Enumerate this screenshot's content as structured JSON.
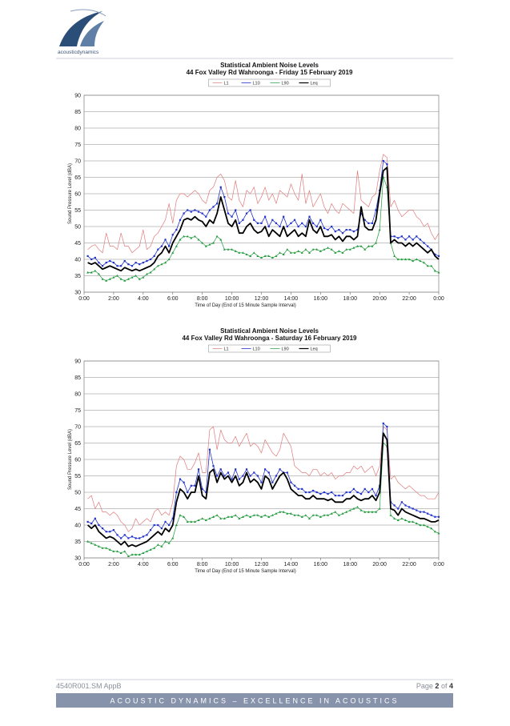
{
  "header": {
    "logo_text": "acousticdynamics"
  },
  "chart_data": [
    {
      "type": "line",
      "title": "Statistical Ambient Noise Levels",
      "subtitle": "44 Fox Valley Rd Wahroonga - Friday 15 February 2019",
      "x_label": "Time of Day (End of 15 Minute Sample Interval)",
      "y_label": "Sound Pressure Level (dBA)",
      "x": [
        0.25,
        0.5,
        0.75,
        1,
        1.25,
        1.5,
        1.75,
        2,
        2.25,
        2.5,
        2.75,
        3,
        3.25,
        3.5,
        3.75,
        4,
        4.25,
        4.5,
        4.75,
        5,
        5.25,
        5.5,
        5.75,
        6,
        6.25,
        6.5,
        6.75,
        7,
        7.25,
        7.5,
        7.75,
        8,
        8.25,
        8.5,
        8.75,
        9,
        9.25,
        9.5,
        9.75,
        10,
        10.25,
        10.5,
        10.75,
        11,
        11.25,
        11.5,
        11.75,
        12,
        12.25,
        12.5,
        12.75,
        13,
        13.25,
        13.5,
        13.75,
        14,
        14.25,
        14.5,
        14.75,
        15,
        15.25,
        15.5,
        15.75,
        16,
        16.25,
        16.5,
        16.75,
        17,
        17.25,
        17.5,
        17.75,
        18,
        18.25,
        18.5,
        18.75,
        19,
        19.25,
        19.5,
        19.75,
        20,
        20.25,
        20.5,
        20.75,
        21,
        21.25,
        21.5,
        21.75,
        22,
        22.25,
        22.5,
        22.75,
        23,
        23.25,
        23.5,
        23.75,
        24
      ],
      "xlim": [
        0,
        24
      ],
      "xticks": [
        {
          "value": 0,
          "label": "0:00"
        },
        {
          "value": 2,
          "label": "2:00"
        },
        {
          "value": 4,
          "label": "4:00"
        },
        {
          "value": 6,
          "label": "6:00"
        },
        {
          "value": 8,
          "label": "8:00"
        },
        {
          "value": 10,
          "label": "10:00"
        },
        {
          "value": 12,
          "label": "12:00"
        },
        {
          "value": 14,
          "label": "14:00"
        },
        {
          "value": 16,
          "label": "16:00"
        },
        {
          "value": 18,
          "label": "18:00"
        },
        {
          "value": 20,
          "label": "20:00"
        },
        {
          "value": 22,
          "label": "22:00"
        },
        {
          "value": 24,
          "label": "0:00"
        }
      ],
      "ylim": [
        30,
        90
      ],
      "yticks": [
        30,
        35,
        40,
        45,
        50,
        55,
        60,
        65,
        70,
        75,
        80,
        85,
        90
      ],
      "grid": true,
      "legend": "top",
      "series": [
        {
          "name": "L1",
          "color": "#e07a7a",
          "line_width": 0.7,
          "values": [
            43,
            44,
            44.5,
            43,
            42,
            48,
            44,
            44,
            43,
            48,
            44,
            44,
            42,
            43,
            44,
            49,
            43,
            44,
            47,
            48,
            50,
            52,
            57,
            51,
            58,
            60,
            60,
            59,
            60,
            61,
            60,
            58,
            57,
            61,
            62,
            65,
            66,
            64,
            59,
            58,
            64,
            58,
            56,
            61,
            60,
            62,
            57,
            59,
            62,
            58,
            60,
            57,
            61,
            60,
            59,
            63,
            60,
            58,
            66,
            57,
            61,
            56,
            58,
            60,
            56,
            54,
            57,
            55,
            54,
            57,
            56,
            55,
            54,
            67,
            58,
            57,
            56,
            59,
            60,
            67,
            72,
            71,
            56,
            58,
            55,
            53,
            54,
            55,
            55,
            53,
            52,
            50,
            51,
            48,
            46,
            48
          ]
        },
        {
          "name": "L10",
          "color": "#2233cc",
          "line_width": 0.8,
          "marker": "square",
          "values": [
            41,
            40,
            40.5,
            39,
            38,
            39,
            39.5,
            39,
            38,
            38,
            39.5,
            38.5,
            38,
            39,
            38.5,
            39,
            39.5,
            40,
            41,
            43,
            44,
            46,
            44,
            47.5,
            49,
            52,
            54,
            55,
            54.5,
            55,
            54.5,
            54,
            53,
            55,
            56,
            57,
            62,
            59,
            54,
            53,
            55,
            51,
            52,
            54,
            55,
            52,
            51,
            51,
            53,
            50,
            52,
            51,
            50,
            53,
            50,
            51,
            52,
            50,
            51,
            50,
            53,
            51,
            50,
            52,
            49.5,
            49,
            50,
            48.5,
            49,
            48,
            49,
            49,
            48.5,
            49,
            54,
            52,
            51,
            51,
            55,
            61,
            70,
            69,
            47,
            47,
            46.5,
            47,
            46,
            47,
            46,
            47,
            46,
            45,
            44,
            43,
            41.5,
            41
          ]
        },
        {
          "name": "L90",
          "color": "#1f9a3a",
          "line_width": 0.7,
          "marker": "triangle",
          "values": [
            36,
            36,
            36.5,
            35.5,
            34,
            33.5,
            34,
            34.5,
            35,
            34,
            33.5,
            34,
            34.5,
            35,
            34,
            34.5,
            35.5,
            36,
            37,
            38,
            38.5,
            39,
            40,
            42,
            44,
            46,
            47,
            47,
            46.5,
            47,
            46,
            45,
            44,
            44.5,
            45,
            47,
            46,
            43,
            43,
            43,
            42.5,
            42,
            42,
            41.5,
            41,
            42,
            41,
            40.5,
            41,
            41,
            40.5,
            41,
            42,
            41.5,
            43,
            42,
            42,
            42.5,
            42,
            43,
            42,
            43,
            43,
            42.5,
            43,
            43.5,
            43,
            42,
            42.5,
            42,
            43,
            43,
            43.5,
            44,
            44,
            43,
            44,
            44,
            45,
            49,
            65,
            62,
            45,
            41,
            40,
            40,
            40,
            40,
            39.5,
            40,
            39.5,
            39,
            38,
            38,
            36.5,
            36
          ]
        },
        {
          "name": "Leq",
          "color": "#000000",
          "line_width": 1.8,
          "values": [
            39,
            38.5,
            39,
            38,
            37,
            37.5,
            38,
            37.5,
            37,
            36.5,
            37.5,
            37,
            36.5,
            37,
            36.5,
            37,
            37.5,
            38,
            39,
            41,
            42,
            44,
            42,
            45,
            47,
            49,
            52,
            52.5,
            52,
            53,
            52,
            51.5,
            50,
            52,
            51,
            54,
            59,
            55,
            51,
            50,
            52,
            48,
            48,
            50,
            51,
            49,
            48,
            48.5,
            50,
            47,
            49,
            48,
            47,
            50,
            47,
            48,
            49,
            47,
            48,
            47,
            52,
            49,
            48,
            50,
            47,
            47,
            47.5,
            46,
            47,
            45.5,
            47,
            47,
            46,
            47,
            56,
            50,
            49,
            49,
            52,
            60,
            67,
            68,
            45,
            46,
            45,
            45,
            44,
            45,
            44,
            45,
            44,
            43,
            42,
            43,
            41,
            40
          ]
        }
      ]
    },
    {
      "type": "line",
      "title": "Statistical Ambient Noise Levels",
      "subtitle": "44 Fox Valley Rd Wahroonga - Saturday 16 February 2019",
      "x_label": "Time of Day (End of 15 Minute Sample Interval)",
      "y_label": "Sound Pressure Level (dBA)",
      "x": [
        0.25,
        0.5,
        0.75,
        1,
        1.25,
        1.5,
        1.75,
        2,
        2.25,
        2.5,
        2.75,
        3,
        3.25,
        3.5,
        3.75,
        4,
        4.25,
        4.5,
        4.75,
        5,
        5.25,
        5.5,
        5.75,
        6,
        6.25,
        6.5,
        6.75,
        7,
        7.25,
        7.5,
        7.75,
        8,
        8.25,
        8.5,
        8.75,
        9,
        9.25,
        9.5,
        9.75,
        10,
        10.25,
        10.5,
        10.75,
        11,
        11.25,
        11.5,
        11.75,
        12,
        12.25,
        12.5,
        12.75,
        13,
        13.25,
        13.5,
        13.75,
        14,
        14.25,
        14.5,
        14.75,
        15,
        15.25,
        15.5,
        15.75,
        16,
        16.25,
        16.5,
        16.75,
        17,
        17.25,
        17.5,
        17.75,
        18,
        18.25,
        18.5,
        18.75,
        19,
        19.25,
        19.5,
        19.75,
        20,
        20.25,
        20.5,
        20.75,
        21,
        21.25,
        21.5,
        21.75,
        22,
        22.25,
        22.5,
        22.75,
        23,
        23.25,
        23.5,
        23.75,
        24
      ],
      "xlim": [
        0,
        24
      ],
      "xticks": [
        {
          "value": 0,
          "label": "0:00"
        },
        {
          "value": 2,
          "label": "2:00"
        },
        {
          "value": 4,
          "label": "4:00"
        },
        {
          "value": 6,
          "label": "6:00"
        },
        {
          "value": 8,
          "label": "8:00"
        },
        {
          "value": 10,
          "label": "10:00"
        },
        {
          "value": 12,
          "label": "12:00"
        },
        {
          "value": 14,
          "label": "14:00"
        },
        {
          "value": 16,
          "label": "16:00"
        },
        {
          "value": 18,
          "label": "18:00"
        },
        {
          "value": 20,
          "label": "20:00"
        },
        {
          "value": 22,
          "label": "22:00"
        },
        {
          "value": 24,
          "label": "0:00"
        }
      ],
      "ylim": [
        30,
        90
      ],
      "yticks": [
        30,
        35,
        40,
        45,
        50,
        55,
        60,
        65,
        70,
        75,
        80,
        85,
        90
      ],
      "grid": true,
      "legend": "top",
      "series": [
        {
          "name": "L1",
          "color": "#e07a7a",
          "line_width": 0.7,
          "values": [
            48,
            49,
            45,
            47,
            44,
            44,
            43,
            44,
            43,
            41,
            40,
            38,
            39,
            42,
            40,
            41,
            42,
            41,
            44,
            45,
            43,
            44,
            43,
            47,
            58,
            61,
            60,
            57,
            57,
            59,
            62,
            56,
            56,
            69,
            70,
            63,
            69,
            66,
            65,
            65,
            67,
            64,
            66,
            68,
            64,
            65,
            64,
            62,
            66,
            64,
            62,
            61,
            63,
            68,
            66,
            64,
            58,
            57,
            56,
            56,
            55,
            57,
            57,
            55,
            56,
            55,
            56,
            54,
            55,
            55,
            56,
            56,
            58,
            57,
            58,
            56,
            57,
            58,
            55,
            58,
            70,
            69,
            54,
            55,
            53,
            52,
            51,
            52,
            51,
            50,
            49,
            49,
            48,
            48,
            48,
            50
          ]
        },
        {
          "name": "L10",
          "color": "#2233cc",
          "line_width": 0.8,
          "marker": "square",
          "values": [
            41,
            40.5,
            42,
            40,
            39,
            38,
            38,
            38.5,
            37,
            36,
            37,
            36,
            36.5,
            36,
            36,
            36.5,
            37,
            38.5,
            40,
            40,
            39,
            41,
            40,
            42,
            50,
            54,
            53,
            50,
            52,
            52,
            57,
            51,
            50,
            63,
            58,
            55,
            57,
            55,
            56,
            54,
            57,
            54,
            55,
            57,
            55,
            56,
            55,
            53,
            57,
            56,
            53,
            55,
            57,
            56,
            56,
            53,
            52,
            51,
            51,
            50,
            50,
            50.5,
            50,
            49.5,
            50,
            49.5,
            50,
            49,
            49,
            49,
            50,
            50,
            51,
            50,
            49.5,
            51,
            50,
            51,
            49,
            52,
            71,
            70,
            47,
            46,
            45,
            47,
            46,
            45.5,
            45,
            44.5,
            44,
            44,
            43.5,
            43,
            42.5,
            42.5
          ]
        },
        {
          "name": "L90",
          "color": "#1f9a3a",
          "line_width": 0.7,
          "marker": "triangle",
          "values": [
            35,
            34.5,
            34,
            33.5,
            33,
            33,
            32.5,
            32,
            32,
            31.5,
            32,
            30.5,
            31,
            31,
            31,
            31.5,
            32,
            32.5,
            33,
            34,
            33.5,
            35,
            34.5,
            36,
            40,
            43,
            42.5,
            41,
            41,
            41,
            41.5,
            42,
            41.5,
            42,
            42.5,
            43,
            42,
            42,
            42.5,
            42.5,
            43,
            42,
            42.5,
            43,
            42.5,
            43,
            43,
            42.5,
            43,
            42.5,
            43,
            43.5,
            44,
            44,
            43.5,
            43.5,
            43,
            43,
            42.5,
            43,
            42,
            43,
            43,
            42.5,
            43,
            43,
            43.5,
            44,
            43,
            43.5,
            44,
            44.5,
            45,
            45.5,
            44.5,
            44,
            44,
            44,
            44,
            45,
            65,
            64,
            43,
            42,
            41.5,
            42,
            41.5,
            41,
            41,
            40.5,
            40,
            40,
            39.5,
            39,
            38,
            37.5
          ]
        },
        {
          "name": "Leq",
          "color": "#000000",
          "line_width": 1.8,
          "values": [
            40,
            39,
            40,
            38,
            37,
            36,
            36.5,
            36,
            35,
            34,
            35,
            33.5,
            34,
            33.5,
            34,
            34.5,
            35,
            36,
            37,
            38,
            37,
            39,
            38,
            40,
            47,
            51,
            50,
            48,
            50,
            50,
            55,
            49,
            48,
            56,
            57,
            53,
            56,
            54,
            55,
            53,
            55,
            52,
            53,
            56,
            53,
            54,
            53,
            51,
            55,
            54,
            51,
            53,
            55,
            56,
            54,
            51,
            50,
            49,
            49,
            48,
            48,
            49,
            48,
            48,
            48,
            47.5,
            48,
            47,
            47,
            47,
            48,
            48,
            49,
            48,
            47.5,
            48,
            48,
            49,
            47.5,
            50,
            68,
            66,
            45,
            44.5,
            43,
            45,
            44,
            43.5,
            43,
            42.5,
            42,
            42,
            41.5,
            41,
            41,
            41.5
          ]
        }
      ]
    }
  ],
  "footer": {
    "doc_ref": "4540R001.SM AppB",
    "page_label": "Page",
    "page": 2,
    "of": "of",
    "pages": 4,
    "banner": "ACOUSTIC DYNAMICS – EXCELLENCE IN ACOUSTICS"
  }
}
